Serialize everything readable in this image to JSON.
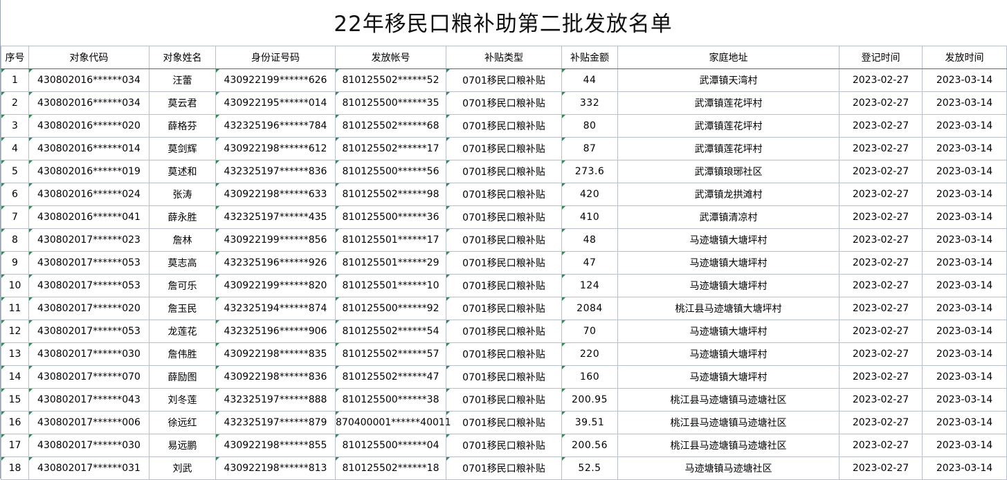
{
  "title": "22年移民口粮补助第二批发放名单",
  "columns": [
    "序号",
    "对象代码",
    "对象姓名",
    "身份证号码",
    "发放帐号",
    "补贴类型",
    "补贴金额",
    "家庭地址",
    "登记时间",
    "发放时间"
  ],
  "rows": [
    {
      "no": "1",
      "code": "430802016******034",
      "name": "汪蕾",
      "id": "430922199******626",
      "account": "810125502******52",
      "type": "0701移民口粮补贴",
      "amount": "44",
      "address": "武潭镇天湾村",
      "reg": "2023-02-27",
      "pay": "2023-03-14"
    },
    {
      "no": "2",
      "code": "430802016******034",
      "name": "莫云君",
      "id": "430922195******014",
      "account": "810125500******35",
      "type": "0701移民口粮补贴",
      "amount": "332",
      "address": "武潭镇莲花坪村",
      "reg": "2023-02-27",
      "pay": "2023-03-14"
    },
    {
      "no": "3",
      "code": "430802016******020",
      "name": "薛格芬",
      "id": "432325196******784",
      "account": "810125502******68",
      "type": "0701移民口粮补贴",
      "amount": "80",
      "address": "武潭镇莲花坪村",
      "reg": "2023-02-27",
      "pay": "2023-03-14"
    },
    {
      "no": "4",
      "code": "430802016******014",
      "name": "莫剑辉",
      "id": "430922198******612",
      "account": "810125502******17",
      "type": "0701移民口粮补贴",
      "amount": "87",
      "address": "武潭镇莲花坪村",
      "reg": "2023-02-27",
      "pay": "2023-03-14"
    },
    {
      "no": "5",
      "code": "430802016******019",
      "name": "莫述和",
      "id": "432325197******836",
      "account": "810125500******56",
      "type": "0701移民口粮补贴",
      "amount": "273.6",
      "address": "武潭镇琅琊社区",
      "reg": "2023-02-27",
      "pay": "2023-03-14"
    },
    {
      "no": "6",
      "code": "430802016******024",
      "name": "张涛",
      "id": "430922198******633",
      "account": "810125502******98",
      "type": "0701移民口粮补贴",
      "amount": "420",
      "address": "武潭镇龙拱滩村",
      "reg": "2023-02-27",
      "pay": "2023-03-14"
    },
    {
      "no": "7",
      "code": "430802016******041",
      "name": "薛永胜",
      "id": "432325197******435",
      "account": "810125500******36",
      "type": "0701移民口粮补贴",
      "amount": "410",
      "address": "武潭镇清凉村",
      "reg": "2023-02-27",
      "pay": "2023-03-14"
    },
    {
      "no": "8",
      "code": "430802017******023",
      "name": "詹林",
      "id": "430922199******856",
      "account": "810125501******17",
      "type": "0701移民口粮补贴",
      "amount": "48",
      "address": "马迹塘镇大塘坪村",
      "reg": "2023-02-27",
      "pay": "2023-03-14"
    },
    {
      "no": "9",
      "code": "430802017******053",
      "name": "莫志高",
      "id": "432325196******926",
      "account": "810125501******29",
      "type": "0701移民口粮补贴",
      "amount": "47",
      "address": "马迹塘镇大塘坪村",
      "reg": "2023-02-27",
      "pay": "2023-03-14"
    },
    {
      "no": "10",
      "code": "430802017******053",
      "name": "詹可乐",
      "id": "430922199******820",
      "account": "810125501******10",
      "type": "0701移民口粮补贴",
      "amount": "124",
      "address": "马迹塘镇大塘坪村",
      "reg": "2023-02-27",
      "pay": "2023-03-14"
    },
    {
      "no": "11",
      "code": "430802017******020",
      "name": "詹玉民",
      "id": "432325194******874",
      "account": "810125500******92",
      "type": "0701移民口粮补贴",
      "amount": "2084",
      "address": "桃江县马迹塘镇大塘坪村",
      "reg": "2023-02-27",
      "pay": "2023-03-14"
    },
    {
      "no": "12",
      "code": "430802017******053",
      "name": "龙莲花",
      "id": "432325196******906",
      "account": "810125502******54",
      "type": "0701移民口粮补贴",
      "amount": "70",
      "address": "马迹塘镇大塘坪村",
      "reg": "2023-02-27",
      "pay": "2023-03-14"
    },
    {
      "no": "13",
      "code": "430802017******030",
      "name": "詹伟胜",
      "id": "430922198******835",
      "account": "810125502******57",
      "type": "0701移民口粮补贴",
      "amount": "220",
      "address": "马迹塘镇大塘坪村",
      "reg": "2023-02-27",
      "pay": "2023-03-14"
    },
    {
      "no": "14",
      "code": "430802017******070",
      "name": "薛励图",
      "id": "430922198******836",
      "account": "810125502******47",
      "type": "0701移民口粮补贴",
      "amount": "160",
      "address": "马迹塘镇大塘坪村",
      "reg": "2023-02-27",
      "pay": "2023-03-14"
    },
    {
      "no": "15",
      "code": "430802017******043",
      "name": "刘冬莲",
      "id": "432325197******888",
      "account": "810125500******38",
      "type": "0701移民口粮补贴",
      "amount": "200.95",
      "address": "桃江县马迹塘镇马迹塘社区",
      "reg": "2023-02-27",
      "pay": "2023-03-14"
    },
    {
      "no": "16",
      "code": "430802017******006",
      "name": "徐远红",
      "id": "432325197******879",
      "account": "870400001******40011",
      "type": "0701移民口粮补贴",
      "amount": "39.51",
      "address": "桃江县马迹塘镇马迹塘社区",
      "reg": "2023-02-27",
      "pay": "2023-03-14"
    },
    {
      "no": "17",
      "code": "430802017******030",
      "name": "易远鹏",
      "id": "430922198******855",
      "account": "810125500******04",
      "type": "0701移民口粮补贴",
      "amount": "200.56",
      "address": "桃江县马迹塘镇马迹塘社区",
      "reg": "2023-02-27",
      "pay": "2023-03-14"
    },
    {
      "no": "18",
      "code": "430802017******031",
      "name": "刘武",
      "id": "430922198******813",
      "account": "810125502******18",
      "type": "0701移民口粮补贴",
      "amount": "52.5",
      "address": "马迹塘镇马迹塘社区",
      "reg": "2023-02-27",
      "pay": "2023-03-14"
    }
  ]
}
